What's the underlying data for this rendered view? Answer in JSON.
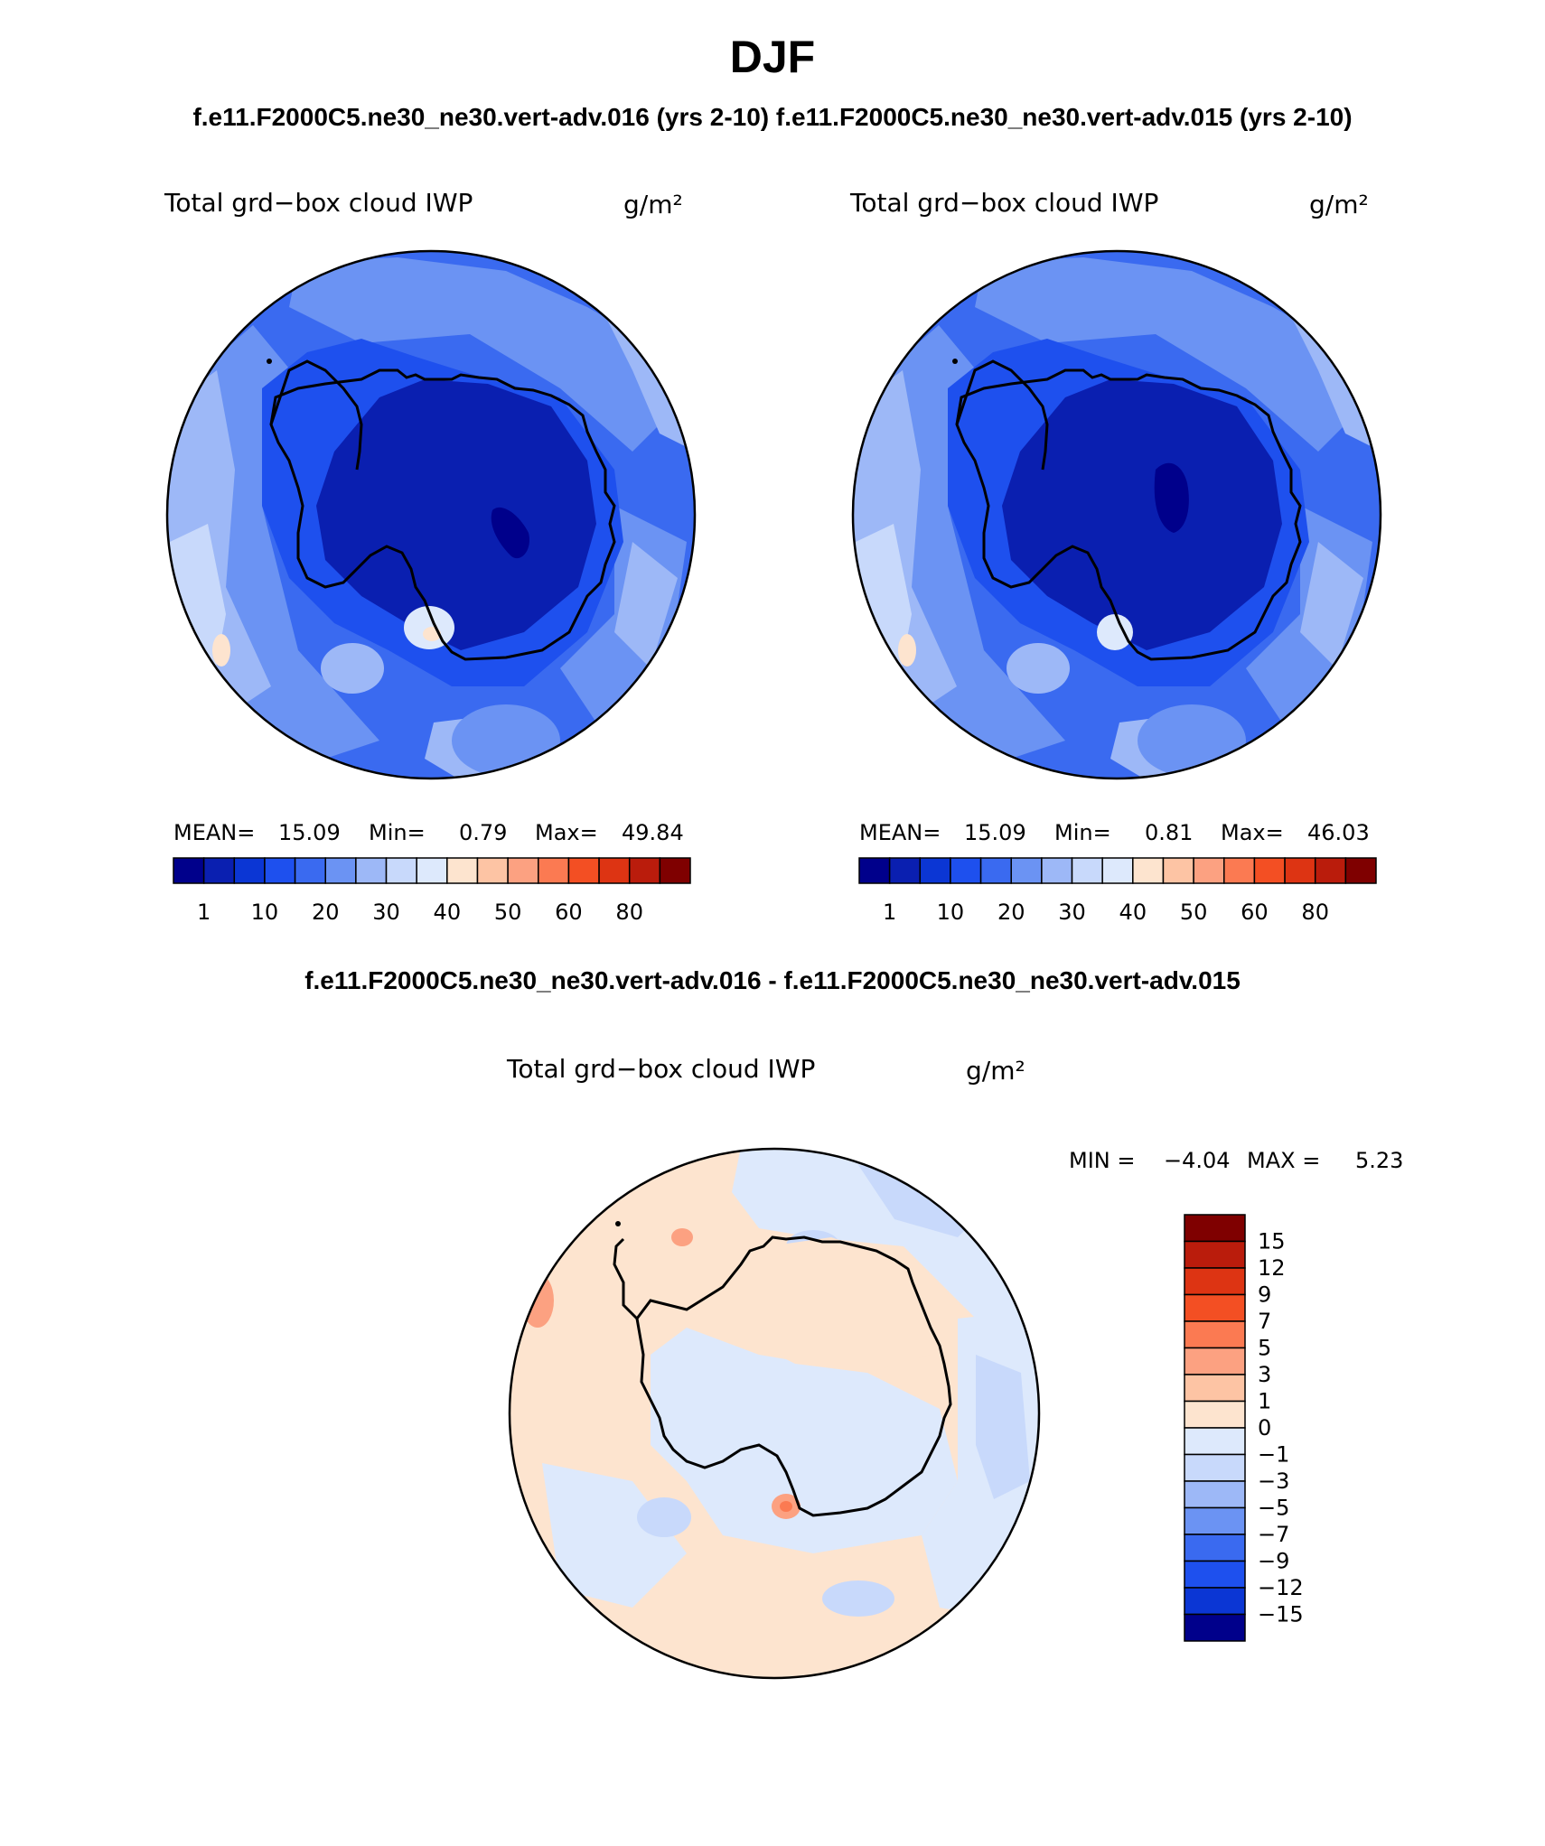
{
  "page_title": "DJF",
  "subtitles": {
    "left": "f.e11.F2000C5.ne30_ne30.vert-adv.016 (yrs 2-10)",
    "right": "f.e11.F2000C5.ne30_ne30.vert-adv.015 (yrs 2-10)",
    "diff": "f.e11.F2000C5.ne30_ne30.vert-adv.016 - f.e11.F2000C5.ne30_ne30.vert-adv.015"
  },
  "variable": "Total grd−box cloud IWP",
  "units": "g/m²",
  "panels": [
    {
      "id": "case-016",
      "stats": {
        "mean_label": "MEAN=",
        "mean": "15.09",
        "min_label": "Min=",
        "min": "0.79",
        "max_label": "Max=",
        "max": "49.84"
      }
    },
    {
      "id": "case-015",
      "stats": {
        "mean_label": "MEAN=",
        "mean": "15.09",
        "min_label": "Min=",
        "min": "0.81",
        "max_label": "Max=",
        "max": "46.03"
      }
    }
  ],
  "diff_stats": {
    "min_label": "MIN =",
    "min": "−4.04",
    "max_label": "MAX =",
    "max": "5.23"
  },
  "colorbar_main": {
    "colors": [
      "#00008b",
      "#0a1fb0",
      "#0b36d4",
      "#1e50ee",
      "#3a6af0",
      "#6b93f3",
      "#9db8f7",
      "#c8d9fb",
      "#dde9fc",
      "#fde4cf",
      "#fdc4a4",
      "#fca181",
      "#fb7a52",
      "#f34f23",
      "#dd3413",
      "#ba1c0c",
      "#7f0000"
    ],
    "labels": [
      "1",
      "10",
      "20",
      "30",
      "40",
      "50",
      "60",
      "80"
    ]
  },
  "colorbar_diff": {
    "colors": [
      "#7f0000",
      "#ba1c0c",
      "#dd3413",
      "#f34f23",
      "#fb7a52",
      "#fca181",
      "#fdc4a4",
      "#fde4cf",
      "#dde9fc",
      "#c8d9fb",
      "#9db8f7",
      "#6b93f3",
      "#3a6af0",
      "#1e50ee",
      "#0b36d4",
      "#00008b"
    ],
    "labels": [
      "15",
      "12",
      "9",
      "7",
      "5",
      "3",
      "1",
      "0",
      "−1",
      "−3",
      "−5",
      "−7",
      "−9",
      "−12",
      "−15"
    ]
  },
  "map_colors": {
    "deep": "#0a1fb0",
    "dark": "#1e50ee",
    "mid": "#3a6af0",
    "light": "#6b93f3",
    "pale": "#9db8f7",
    "paler": "#c8d9fb",
    "whiteblue": "#dde9fc",
    "peach": "#fde4cf",
    "navy": "#00008b",
    "salmon": "#fca181",
    "orange": "#fb7a52"
  }
}
